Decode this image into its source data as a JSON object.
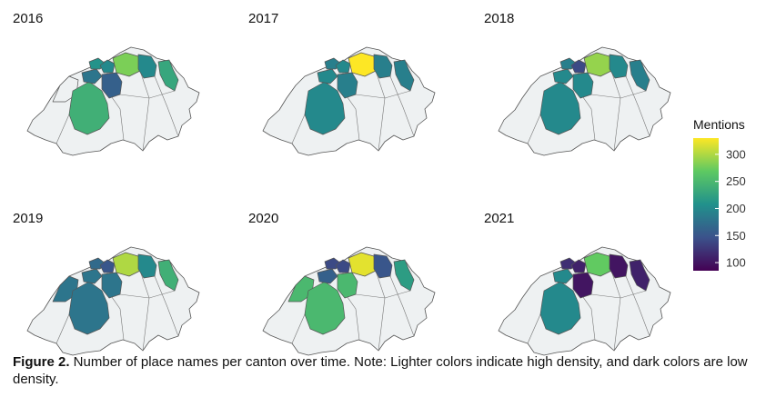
{
  "figure": {
    "caption_label": "Figure 2.",
    "caption_text": " Number of place names per canton over time. Note: Lighter colors indicate high density, and dark colors are low density."
  },
  "chart_data": {
    "type": "choropleth",
    "region": "Switzerland",
    "unit": "canton",
    "colorscale": "viridis",
    "colors": {
      "viridis_stops": [
        "#440154",
        "#3b528b",
        "#21918c",
        "#5ec962",
        "#fde725"
      ],
      "no_data": "#eef1f2",
      "border": "#555555"
    },
    "legend": {
      "title": "Mentions",
      "range": [
        85,
        330
      ],
      "ticks": [
        100,
        150,
        200,
        250,
        300
      ],
      "position": "right"
    },
    "panels": [
      {
        "title": "2016",
        "values": {
          "BS": 210,
          "BL": 200,
          "AG": 280,
          "ZH": 200,
          "TG": 230,
          "SO": 180,
          "BE": 240,
          "LU": 160,
          "NE": null
        }
      },
      {
        "title": "2017",
        "values": {
          "BS": 190,
          "BL": 200,
          "AG": 330,
          "ZH": 190,
          "TG": 190,
          "SO": 200,
          "BE": 200,
          "LU": 190
        }
      },
      {
        "title": "2018",
        "values": {
          "BS": 190,
          "BL": 140,
          "AG": 290,
          "ZH": 200,
          "TG": 190,
          "SO": 200,
          "BE": 200,
          "LU": 200
        }
      },
      {
        "title": "2019",
        "values": {
          "BS": 170,
          "BL": 150,
          "AG": 300,
          "ZH": 200,
          "TG": 240,
          "SO": 180,
          "BE": 180,
          "LU": 180,
          "NE": 180
        }
      },
      {
        "title": "2020",
        "values": {
          "BS": 140,
          "BL": 140,
          "AG": 320,
          "ZH": 150,
          "TG": 220,
          "SO": 160,
          "BE": 250,
          "LU": 250,
          "NE": 250
        }
      },
      {
        "title": "2021",
        "values": {
          "BS": 120,
          "BL": 110,
          "AG": 270,
          "ZH": 100,
          "TG": 110,
          "SO": 200,
          "BE": 200,
          "LU": 100
        }
      }
    ]
  }
}
